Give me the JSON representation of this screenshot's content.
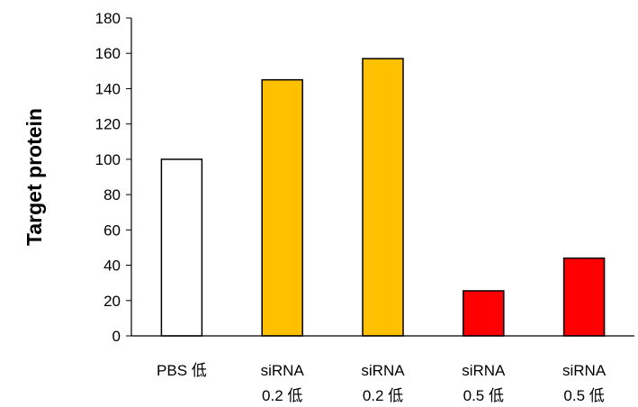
{
  "chart_data": {
    "type": "bar",
    "title": "",
    "xlabel": "",
    "ylabel": "Target protein",
    "ylim": [
      0,
      180
    ],
    "yticks": [
      0,
      20,
      40,
      60,
      80,
      100,
      120,
      140,
      160,
      180
    ],
    "grid": false,
    "legend": "none",
    "categories": [
      [
        "PBS 低"
      ],
      [
        "siRNA",
        "0.2 低"
      ],
      [
        "siRNA",
        "0.2 低"
      ],
      [
        "siRNA",
        "0.5 低"
      ],
      [
        "siRNA",
        "0.5 低"
      ]
    ],
    "values": [
      100,
      145,
      157,
      25.5,
      44
    ],
    "colors": [
      "#ffffff",
      "#ffc000",
      "#ffc000",
      "#ff0000",
      "#ff0000"
    ],
    "edge_color": "#000000"
  }
}
